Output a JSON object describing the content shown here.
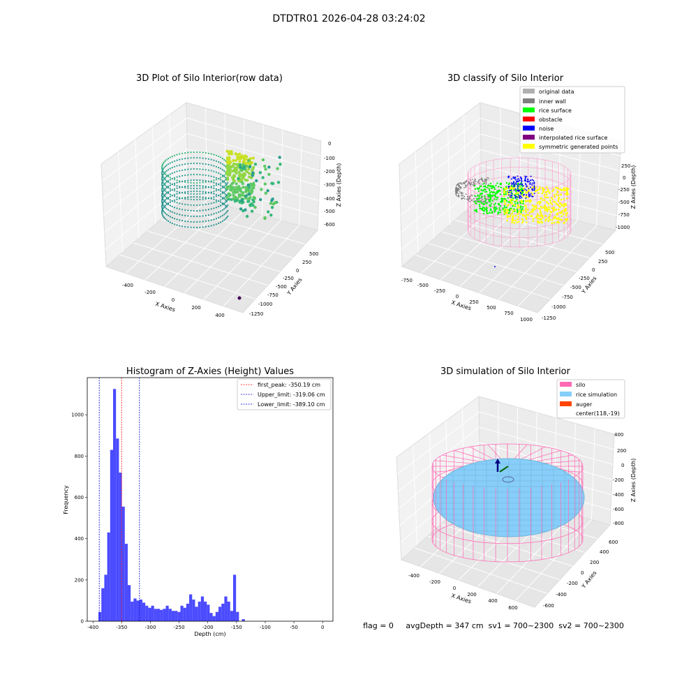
{
  "suptitle": "DTDTR01 2026-04-28 03:24:02",
  "footer_text": "flag = 0     avgDepth = 347 cm  sv1 = 700~2300  sv2 = 700~2300",
  "colors": {
    "hist_bar": "#4b4bff",
    "first_peak_line": "#ff0000",
    "limit_line": "#0000cc",
    "silo": "#ff69b4",
    "rice_simulation": "#87cefa",
    "auger": "#ff4500",
    "original_data": "#b0b0b0",
    "inner_wall": "#808080",
    "rice_surface": "#00ff00",
    "obstacle": "#ff0000",
    "noise": "#0000ff",
    "interpolated_rice_surface": "#800080",
    "symmetric_generated_points": "#ffff00"
  },
  "chart_data": [
    {
      "type": "scatter",
      "projection": "3d",
      "title": "3D Plot of Silo Interior(row data)",
      "xlabel": "X Axies",
      "ylabel": "Y Axies",
      "zlabel": "Z Axies (Depth)",
      "x_ticks": [
        "-400",
        "-200",
        "0",
        "200",
        "400"
      ],
      "y_ticks": [
        "500",
        "250",
        "0",
        "-250",
        "-500",
        "-750",
        "-1000",
        "-1250"
      ],
      "z_ticks": [
        "0",
        "-100",
        "-200",
        "-300",
        "-400",
        "-500",
        "-600"
      ],
      "colormap": "viridis",
      "grid": true
    },
    {
      "type": "scatter",
      "projection": "3d",
      "title": "3D classify of Silo Interior",
      "xlabel": "X Axies",
      "ylabel": "Y Axies",
      "zlabel": "Z Axies (Depth)",
      "x_ticks": [
        "-750",
        "-500",
        "-250",
        "0",
        "250",
        "500",
        "750",
        "1000"
      ],
      "y_ticks": [
        "500",
        "250",
        "0",
        "-250",
        "-500",
        "-750",
        "-1000",
        "-1250"
      ],
      "z_ticks": [
        "250",
        "0",
        "-250",
        "-500",
        "-750",
        "-1000"
      ],
      "legend": [
        "original data",
        "inner wall",
        "rice surface",
        "obstacle",
        "noise",
        "interpolated rice surface",
        "symmetric generated points"
      ],
      "legend_position": "top-right",
      "grid": true
    },
    {
      "type": "bar",
      "title": "Histogram of Z-Axies (Height) Values",
      "xlabel": "Depth (cm)",
      "ylabel": "Frequency",
      "xlim": [
        -410,
        18
      ],
      "ylim": [
        0,
        1180
      ],
      "x_ticks": [
        -400,
        -350,
        -300,
        -250,
        -200,
        -150,
        -100,
        -50,
        0
      ],
      "y_ticks": [
        0,
        200,
        400,
        600,
        800,
        1000
      ],
      "bin_width": 5.1,
      "bins": [
        {
          "x": -390.5,
          "y": 45
        },
        {
          "x": -385.4,
          "y": 160
        },
        {
          "x": -380.3,
          "y": 225
        },
        {
          "x": -375.2,
          "y": 430
        },
        {
          "x": -370.1,
          "y": 830
        },
        {
          "x": -365.0,
          "y": 1125
        },
        {
          "x": -359.9,
          "y": 885
        },
        {
          "x": -354.8,
          "y": 720
        },
        {
          "x": -349.7,
          "y": 555
        },
        {
          "x": -344.6,
          "y": 375
        },
        {
          "x": -339.5,
          "y": 175
        },
        {
          "x": -334.4,
          "y": 95
        },
        {
          "x": -329.3,
          "y": 110
        },
        {
          "x": -324.2,
          "y": 100
        },
        {
          "x": -319.1,
          "y": 105
        },
        {
          "x": -314.0,
          "y": 90
        },
        {
          "x": -308.9,
          "y": 75
        },
        {
          "x": -303.8,
          "y": 65
        },
        {
          "x": -298.7,
          "y": 75
        },
        {
          "x": -293.6,
          "y": 60
        },
        {
          "x": -288.5,
          "y": 60
        },
        {
          "x": -283.4,
          "y": 55
        },
        {
          "x": -278.3,
          "y": 60
        },
        {
          "x": -273.2,
          "y": 75
        },
        {
          "x": -268.1,
          "y": 60
        },
        {
          "x": -263.0,
          "y": 50
        },
        {
          "x": -257.9,
          "y": 50
        },
        {
          "x": -252.8,
          "y": 45
        },
        {
          "x": -247.7,
          "y": 75
        },
        {
          "x": -242.6,
          "y": 65
        },
        {
          "x": -237.5,
          "y": 85
        },
        {
          "x": -232.4,
          "y": 130
        },
        {
          "x": -227.3,
          "y": 105
        },
        {
          "x": -222.2,
          "y": 70
        },
        {
          "x": -217.1,
          "y": 95
        },
        {
          "x": -212.0,
          "y": 120
        },
        {
          "x": -206.9,
          "y": 95
        },
        {
          "x": -201.8,
          "y": 80
        },
        {
          "x": -196.7,
          "y": 40
        },
        {
          "x": -191.6,
          "y": 25
        },
        {
          "x": -186.5,
          "y": 45
        },
        {
          "x": -181.4,
          "y": 70
        },
        {
          "x": -176.3,
          "y": 85
        },
        {
          "x": -171.2,
          "y": 120
        },
        {
          "x": -166.1,
          "y": 95
        },
        {
          "x": -161.0,
          "y": 50
        },
        {
          "x": -155.9,
          "y": 225
        },
        {
          "x": -150.8,
          "y": 45
        },
        {
          "x": -145.7,
          "y": 0
        },
        {
          "x": -140.6,
          "y": 10
        }
      ],
      "vlines": [
        {
          "label": "first_peak: -350.19 cm",
          "x": -350.19,
          "style": "dashed",
          "color_key": "first_peak_line"
        },
        {
          "label": "Upper_limit: -319.06 cm",
          "x": -319.06,
          "style": "dashed",
          "color_key": "limit_line"
        },
        {
          "label": "Lower_limit: -389.10 cm",
          "x": -389.1,
          "style": "dashed",
          "color_key": "limit_line"
        }
      ],
      "legend_position": "top-right"
    },
    {
      "type": "scatter",
      "projection": "3d",
      "title": "3D simulation of Silo Interior",
      "xlabel": "X Axies",
      "ylabel": "Y Axies",
      "zlabel": "Z Axies (Depth)",
      "x_ticks": [
        "-400",
        "-200",
        "0",
        "200",
        "400",
        "600"
      ],
      "y_ticks": [
        "600",
        "400",
        "200",
        "0",
        "-200",
        "-400",
        "-600"
      ],
      "z_ticks": [
        "400",
        "200",
        "0",
        "-200",
        "-400",
        "-600",
        "-800"
      ],
      "legend": [
        "silo",
        "rice simulation",
        "auger",
        "center(118,-19)"
      ],
      "legend_position": "top-right",
      "grid": true
    }
  ]
}
